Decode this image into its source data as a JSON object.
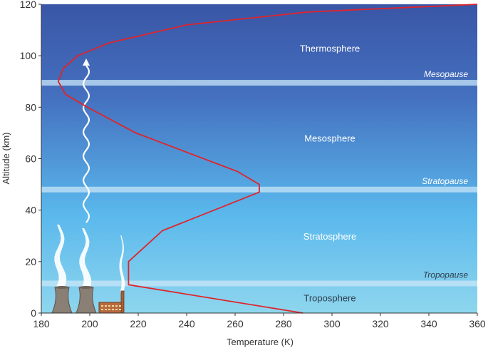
{
  "chart_data": {
    "type": "line",
    "title": "",
    "xlabel": "Temperature (K)",
    "ylabel": "Altitude (km)",
    "xlim": [
      180,
      360
    ],
    "ylim": [
      0,
      120
    ],
    "xticks": [
      180,
      200,
      220,
      240,
      260,
      280,
      300,
      320,
      340,
      360
    ],
    "yticks": [
      0,
      20,
      40,
      60,
      80,
      100,
      120
    ],
    "grid": false,
    "series": [
      {
        "color": "#e0242b",
        "points": [
          {
            "x": 288,
            "y": 0
          },
          {
            "x": 216,
            "y": 11
          },
          {
            "x": 216,
            "y": 20
          },
          {
            "x": 230,
            "y": 32
          },
          {
            "x": 270,
            "y": 47
          },
          {
            "x": 270,
            "y": 50
          },
          {
            "x": 261,
            "y": 55
          },
          {
            "x": 219,
            "y": 70
          },
          {
            "x": 199,
            "y": 80
          },
          {
            "x": 190,
            "y": 85
          },
          {
            "x": 187,
            "y": 90
          },
          {
            "x": 189,
            "y": 95
          },
          {
            "x": 195,
            "y": 100
          },
          {
            "x": 208,
            "y": 105
          },
          {
            "x": 240,
            "y": 112
          },
          {
            "x": 290,
            "y": 117
          },
          {
            "x": 360,
            "y": 120
          }
        ]
      }
    ],
    "layers": [
      {
        "label": "Troposphere",
        "altitude": 6
      },
      {
        "label": "Stratosphere",
        "altitude": 30
      },
      {
        "label": "Mesosphere",
        "altitude": 68
      },
      {
        "label": "Thermosphere",
        "altitude": 103
      }
    ],
    "boundaries": [
      {
        "label": "Tropopause",
        "altitude": 11.5
      },
      {
        "label": "Stratopause",
        "altitude": 48
      },
      {
        "label": "Mesopause",
        "altitude": 89.5
      }
    ],
    "colors": {
      "sky_top": "#3a56a6",
      "sky_mid": "#5ab8ec",
      "sky_bottom": "#8ed6ee",
      "curve": "#e0242b",
      "boundary_band": "#c8e6f8"
    },
    "icons": [
      "cooling-tower-icon",
      "factory-icon",
      "smoke-plume-icon",
      "wavy-arrow-icon"
    ]
  }
}
